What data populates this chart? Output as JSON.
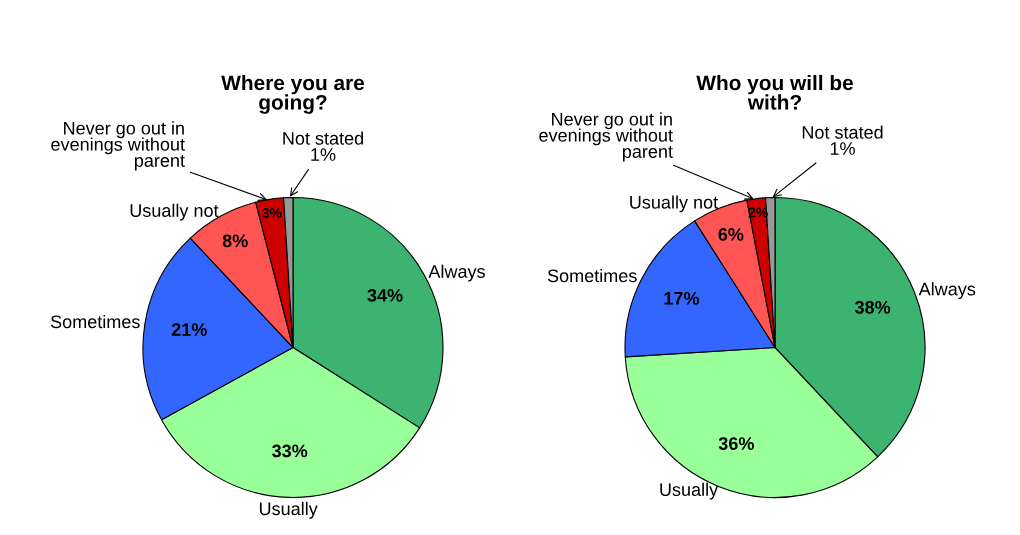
{
  "chart_data": [
    {
      "type": "pie",
      "title": "Where you are going?",
      "categories": [
        "Always",
        "Usually",
        "Sometimes",
        "Usually not",
        "Never go out in evenings without parent",
        "Not stated"
      ],
      "values": [
        34,
        33,
        21,
        8,
        3,
        1
      ],
      "value_labels": [
        "34%",
        "33%",
        "21%",
        "8%",
        "3%",
        "1%"
      ],
      "colors": [
        "#3cb371",
        "#99ff99",
        "#3366ff",
        "#ff5555",
        "#cc0000",
        "#999999"
      ]
    },
    {
      "type": "pie",
      "title": "Who you will be with?",
      "categories": [
        "Always",
        "Usually",
        "Sometimes",
        "Usually not",
        "Never go out in evenings without parent",
        "Not stated"
      ],
      "values": [
        38,
        36,
        17,
        6,
        2,
        1
      ],
      "value_labels": [
        "38%",
        "36%",
        "17%",
        "6%",
        "2%",
        "1%"
      ],
      "colors": [
        "#3cb371",
        "#99ff99",
        "#3366ff",
        "#ff5555",
        "#cc0000",
        "#999999"
      ]
    }
  ]
}
